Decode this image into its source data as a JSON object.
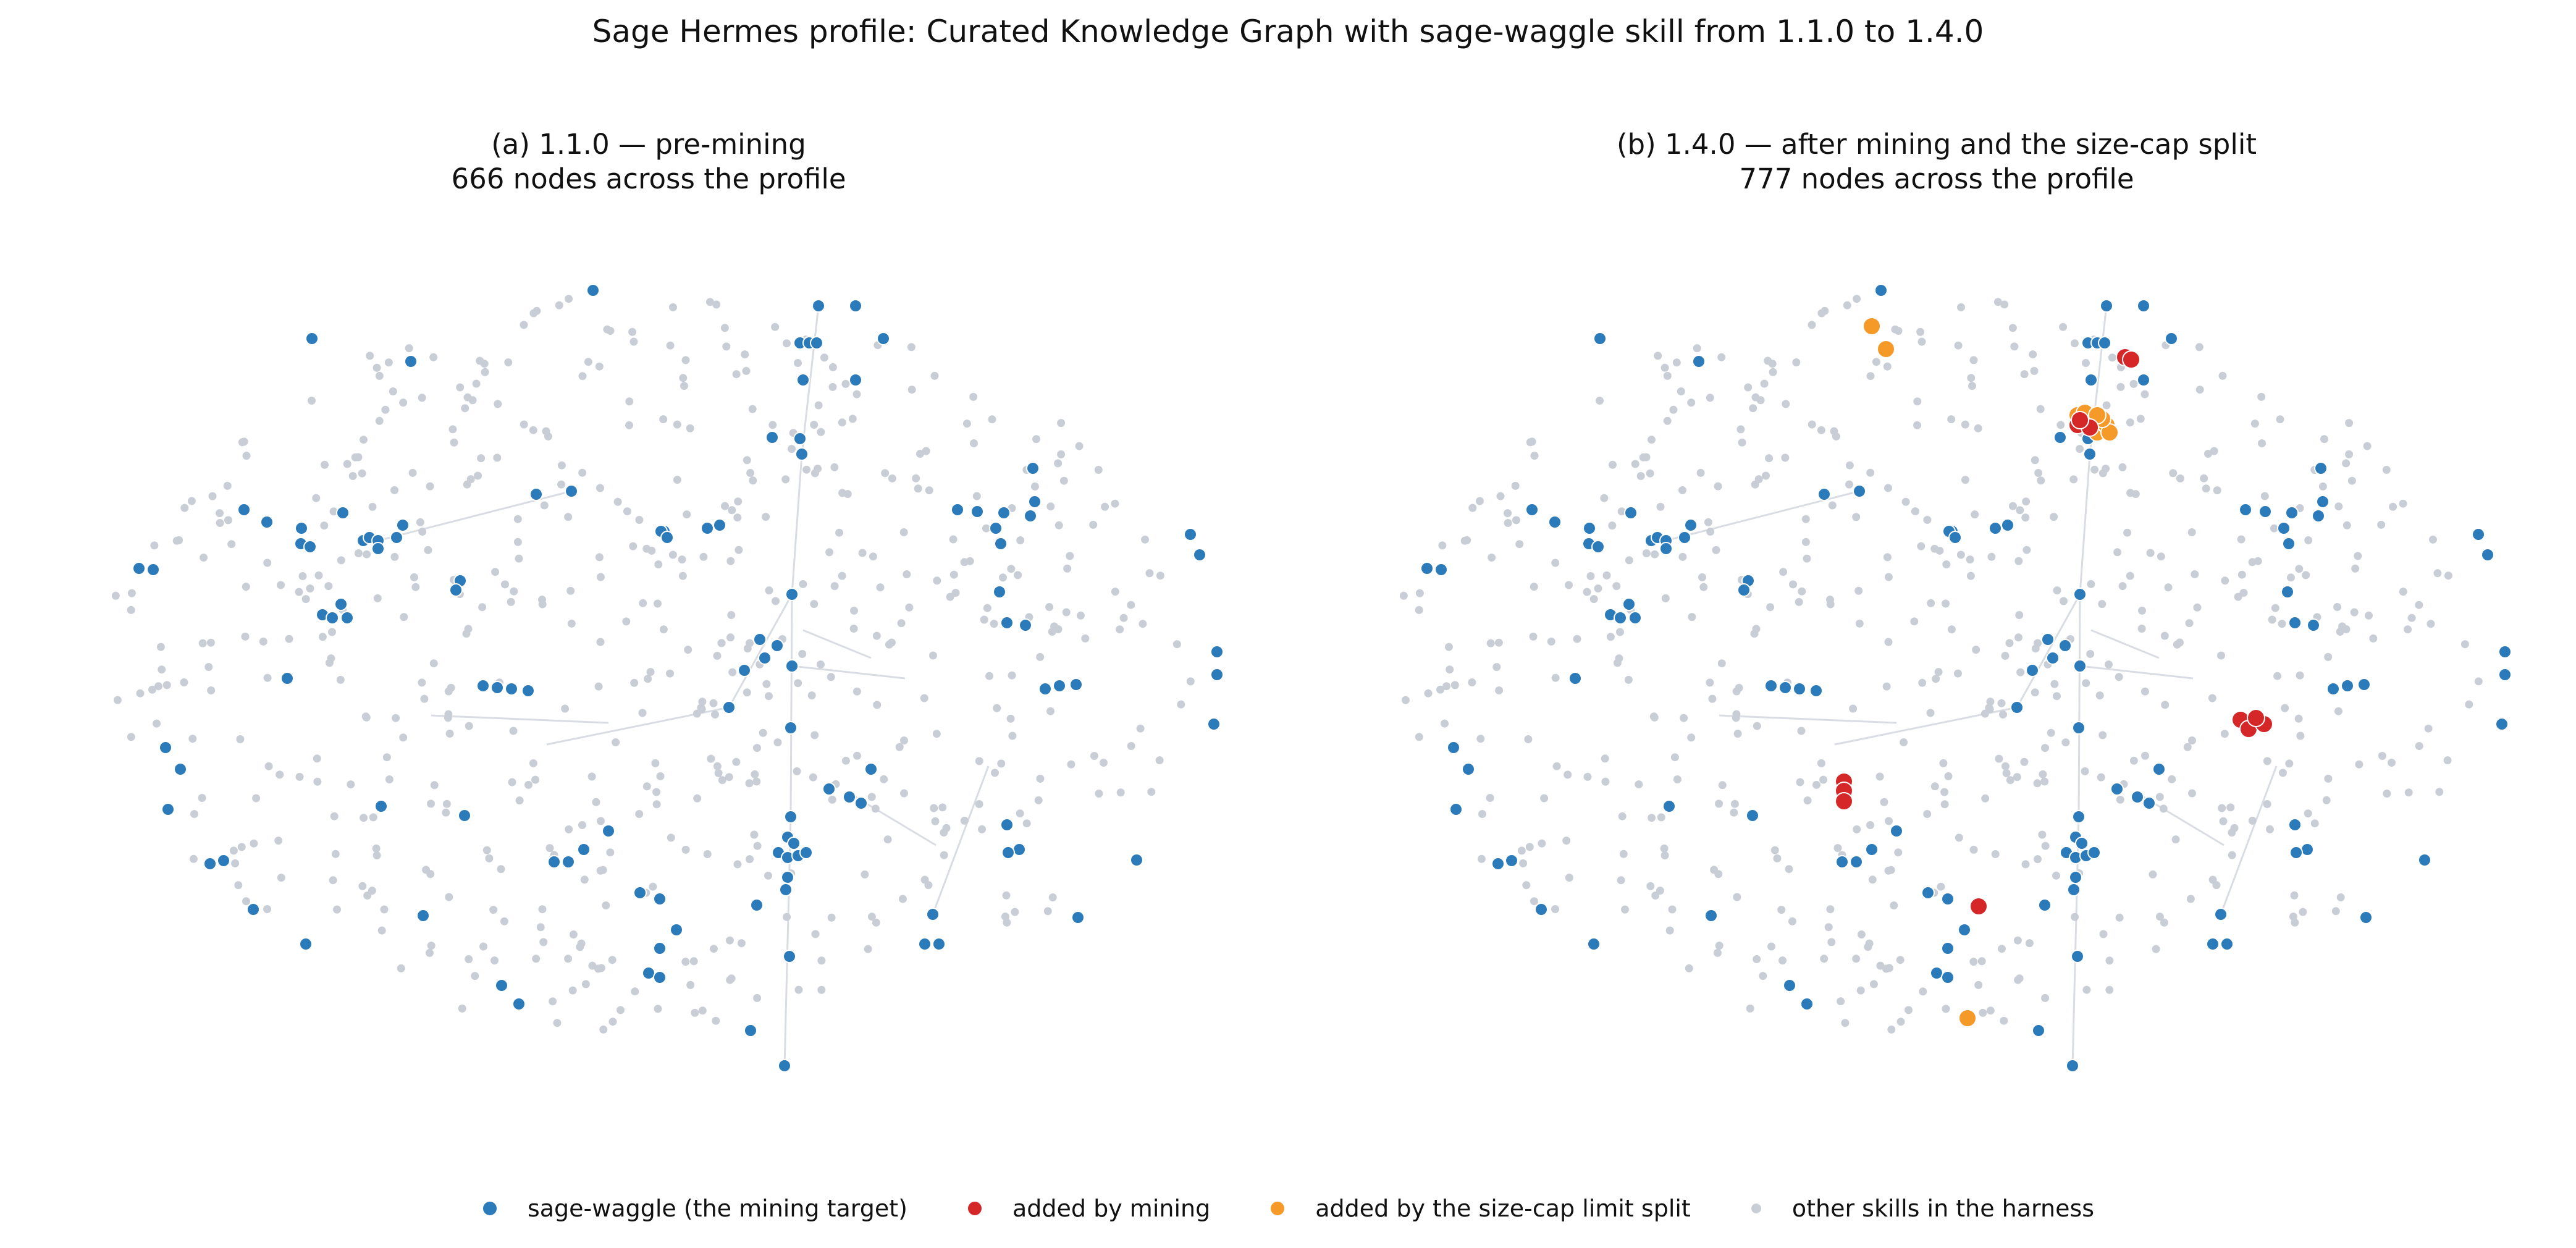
{
  "figure": {
    "title": "Sage Hermes profile: Curated Knowledge Graph with sage-waggle skill from 1.1.0 to 1.4.0"
  },
  "panels": [
    {
      "title_line1": "(a) 1.1.0 — pre-mining",
      "title_line2": "666 nodes across the profile"
    },
    {
      "title_line1": "(b) 1.4.0 — after mining and the size-cap split",
      "title_line2": "777 nodes across the profile"
    }
  ],
  "legend": {
    "items": [
      {
        "label": "sage-waggle (the mining target)",
        "color": "#2b7bba"
      },
      {
        "label": "added by mining",
        "color": "#d62728"
      },
      {
        "label": "added by the size-cap limit split",
        "color": "#f59a28"
      },
      {
        "label": "other skills in the harness",
        "color": "#c9ced6"
      }
    ]
  },
  "colors": {
    "target": "#2b7bba",
    "mining": "#d62728",
    "split": "#f59a28",
    "other": "#c9ced6",
    "edge": "#d9dde3"
  }
}
